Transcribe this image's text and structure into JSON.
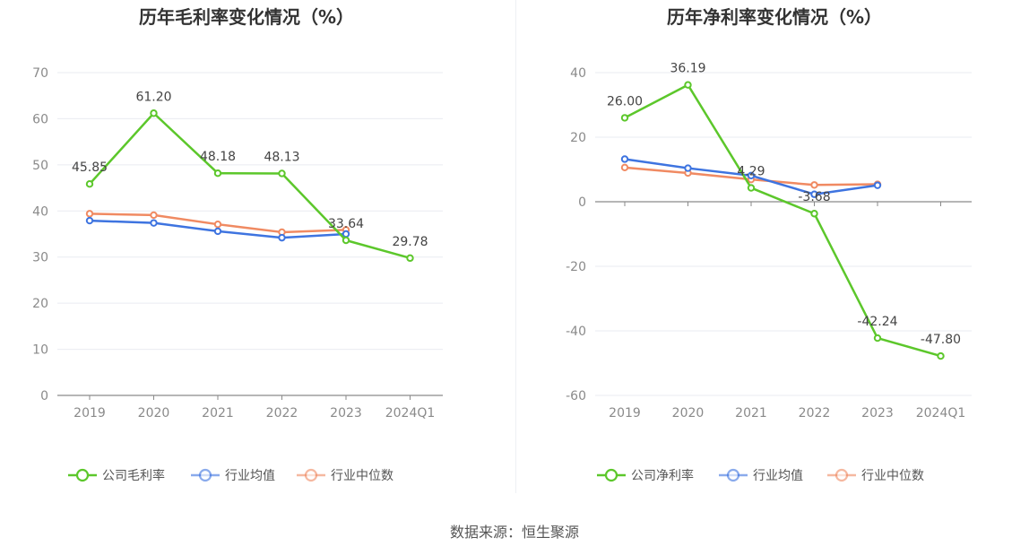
{
  "source": "数据来源：恒生聚源",
  "chart_data": [
    {
      "type": "line",
      "title": "历年毛利率变化情况（%）",
      "categories": [
        "2019",
        "2020",
        "2021",
        "2022",
        "2023",
        "2024Q1"
      ],
      "ylim": [
        0,
        70
      ],
      "yticks": [
        0,
        10,
        20,
        30,
        40,
        50,
        60,
        70
      ],
      "grid": true,
      "legend": "bottom",
      "series": [
        {
          "name": "公司毛利率",
          "color": "#5cc72b",
          "labeled": true,
          "values": [
            45.85,
            61.2,
            48.18,
            48.13,
            33.64,
            29.78
          ],
          "labels": [
            "45.85",
            "61.20",
            "48.18",
            "48.13",
            "33.64",
            "29.78"
          ]
        },
        {
          "name": "行业均值",
          "color": "#3e74e0",
          "labeled": false,
          "values": [
            37.9,
            37.4,
            35.6,
            34.2,
            35.0,
            null
          ]
        },
        {
          "name": "行业中位数",
          "color": "#f08a62",
          "labeled": false,
          "values": [
            39.4,
            39.1,
            37.1,
            35.4,
            35.9,
            null
          ]
        }
      ]
    },
    {
      "type": "line",
      "title": "历年净利率变化情况（%）",
      "categories": [
        "2019",
        "2020",
        "2021",
        "2022",
        "2023",
        "2024Q1"
      ],
      "ylim": [
        -60,
        40
      ],
      "yticks": [
        -60,
        -40,
        -20,
        0,
        20,
        40
      ],
      "grid": true,
      "legend": "bottom",
      "series": [
        {
          "name": "公司净利率",
          "color": "#5cc72b",
          "labeled": true,
          "values": [
            26.0,
            36.19,
            4.29,
            -3.68,
            -42.24,
            -47.8
          ],
          "labels": [
            "26.00",
            "36.19",
            "4.29",
            "-3.68",
            "-42.24",
            "-47.80"
          ]
        },
        {
          "name": "行业均值",
          "color": "#3e74e0",
          "labeled": false,
          "values": [
            13.2,
            10.4,
            8.1,
            2.3,
            5.1,
            null
          ]
        },
        {
          "name": "行业中位数",
          "color": "#f08a62",
          "labeled": false,
          "values": [
            10.6,
            8.9,
            6.9,
            5.2,
            5.4,
            null
          ]
        }
      ]
    }
  ]
}
